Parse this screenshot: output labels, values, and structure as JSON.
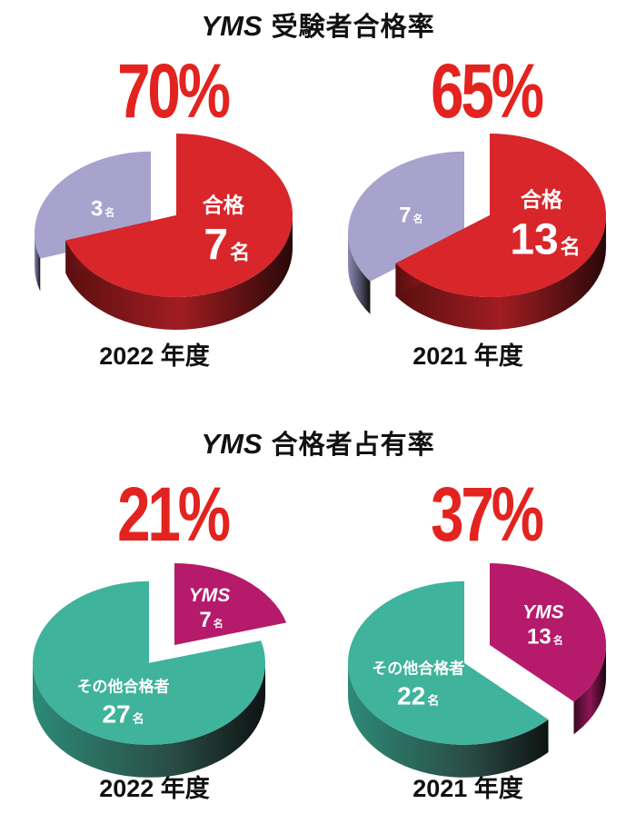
{
  "section1": {
    "brand": "YMS",
    "title": "受験者合格率"
  },
  "section2": {
    "brand": "YMS",
    "title": "合格者占有率"
  },
  "unit": "名",
  "colors": {
    "red": "#d8262b",
    "lavender": "#a7a3cc",
    "magenta": "#b51a6b",
    "teal": "#3fb39c",
    "title_red": "#e3231f"
  },
  "chart_data": [
    {
      "type": "pie",
      "title": "YMS 受験者合格率",
      "year_label": "2022 年度",
      "percent_label": "70%",
      "slices": [
        {
          "label": "合格",
          "value": 7,
          "unit": "名"
        },
        {
          "label": "",
          "value": 3,
          "unit": "名"
        }
      ]
    },
    {
      "type": "pie",
      "title": "YMS 受験者合格率",
      "year_label": "2021 年度",
      "percent_label": "65%",
      "slices": [
        {
          "label": "合格",
          "value": 13,
          "unit": "名"
        },
        {
          "label": "",
          "value": 7,
          "unit": "名"
        }
      ]
    },
    {
      "type": "pie",
      "title": "YMS 合格者占有率",
      "year_label": "2022 年度",
      "percent_label": "21%",
      "slices": [
        {
          "label": "YMS",
          "value": 7,
          "unit": "名"
        },
        {
          "label": "その他合格者",
          "value": 27,
          "unit": "名"
        }
      ]
    },
    {
      "type": "pie",
      "title": "YMS 合格者占有率",
      "year_label": "2021 年度",
      "percent_label": "37%",
      "slices": [
        {
          "label": "YMS",
          "value": 13,
          "unit": "名"
        },
        {
          "label": "その他合格者",
          "value": 22,
          "unit": "名"
        }
      ]
    }
  ]
}
